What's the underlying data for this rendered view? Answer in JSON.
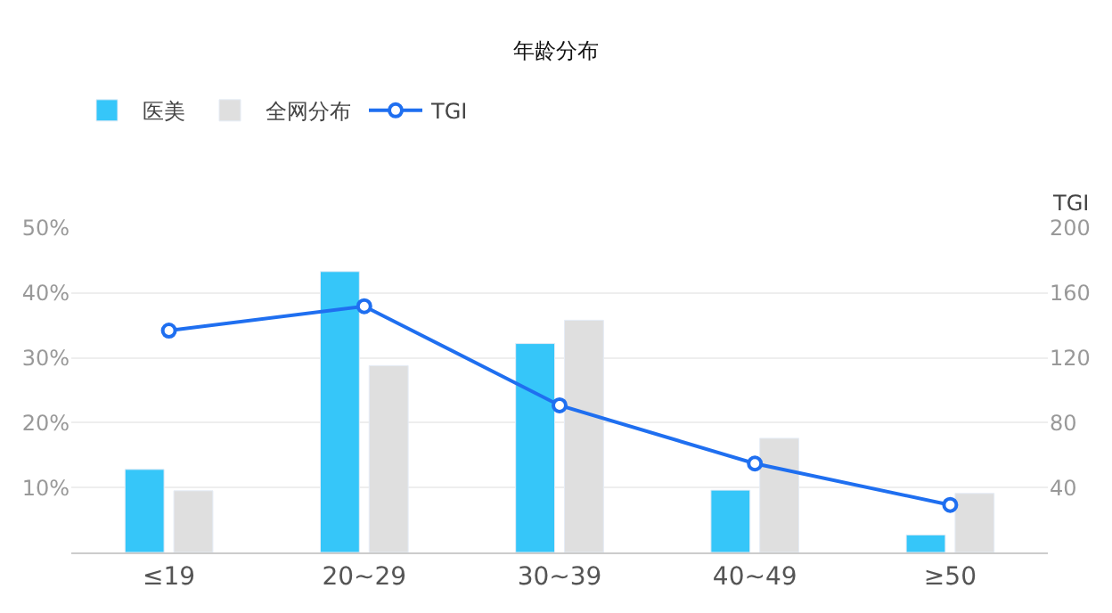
{
  "chart_data": {
    "type": "bar",
    "title": "年龄分布",
    "y2label": "TGI",
    "categories": [
      "≤19",
      "20~29",
      "30~39",
      "40~49",
      "≥50"
    ],
    "series": [
      {
        "name": "医美",
        "color": "#36c6f9",
        "values": [
          12.8,
          43.3,
          32.2,
          9.6,
          2.7
        ]
      },
      {
        "name": "全网分布",
        "color": "#dfdfdf",
        "values": [
          9.5,
          28.8,
          35.8,
          17.6,
          9.1
        ]
      },
      {
        "name": "TGI",
        "type": "line",
        "axis": "y2",
        "color": "#1f6ff0",
        "marker": "circle",
        "values": [
          136.8,
          151.8,
          90.7,
          54.8,
          29.3
        ]
      }
    ],
    "ylim": [
      0,
      50
    ],
    "yticks": [
      {
        "value": 10,
        "label": "10%"
      },
      {
        "value": 20,
        "label": "20%"
      },
      {
        "value": 30,
        "label": "30%"
      },
      {
        "value": 40,
        "label": "40%"
      },
      {
        "value": 50,
        "label": "50%"
      }
    ],
    "y2lim": [
      0,
      200
    ],
    "y2ticks": [
      40,
      80,
      120,
      160,
      200
    ],
    "grid": "y",
    "legend": "top left"
  }
}
